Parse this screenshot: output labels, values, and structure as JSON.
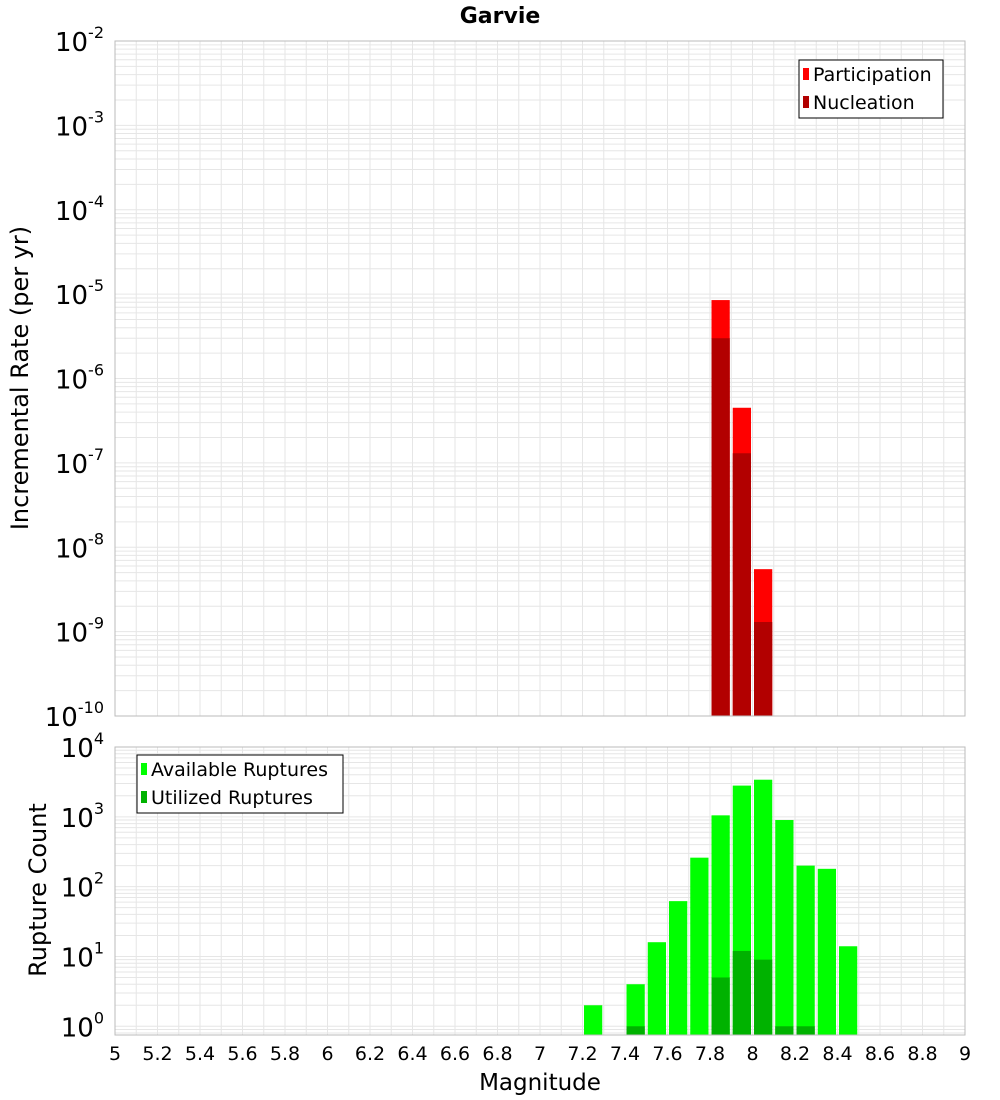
{
  "title": "Garvie",
  "xlabel": "Magnitude",
  "xlim": [
    5,
    9
  ],
  "xticks": [
    "5",
    "5.2",
    "5.4",
    "5.6",
    "5.8",
    "6",
    "6.2",
    "6.4",
    "6.6",
    "6.8",
    "7",
    "7.2",
    "7.4",
    "7.6",
    "7.8",
    "8",
    "8.2",
    "8.4",
    "8.6",
    "8.8",
    "9"
  ],
  "colors": {
    "participation": "#ff0000",
    "nucleation": "#b20000",
    "available": "#00ff00",
    "utilized": "#00b200",
    "grid": "#e6e6e6",
    "frame": "#bbbbbb"
  },
  "chart_data": [
    {
      "type": "bar",
      "panel": "top",
      "ylabel": "Incremental Rate (per yr)",
      "yscale": "log",
      "ylim": [
        1e-10,
        0.01
      ],
      "ytick_exponents": [
        "-10",
        "-9",
        "-8",
        "-7",
        "-6",
        "-5",
        "-4",
        "-3",
        "-2"
      ],
      "ytick_base": "10",
      "bin_width": 0.1,
      "legend_position": "top-right",
      "series": [
        {
          "name": "Participation",
          "color": "#ff0000",
          "x": [
            7.85,
            7.95,
            8.05
          ],
          "values": [
            8.5e-06,
            4.5e-07,
            5.5e-09
          ]
        },
        {
          "name": "Nucleation",
          "color": "#b20000",
          "x": [
            7.85,
            7.95,
            8.05
          ],
          "values": [
            3e-06,
            1.3e-07,
            1.3e-09
          ]
        }
      ]
    },
    {
      "type": "bar",
      "panel": "bottom",
      "ylabel": "Rupture Count",
      "yscale": "log",
      "ylim": [
        0.75,
        10000
      ],
      "ytick_exponents": [
        "0",
        "1",
        "2",
        "3",
        "4"
      ],
      "ytick_base": "10",
      "bin_width": 0.1,
      "legend_position": "top-left",
      "series": [
        {
          "name": "Available Ruptures",
          "color": "#00ff00",
          "x": [
            7.25,
            7.45,
            7.55,
            7.65,
            7.75,
            7.85,
            7.95,
            8.05,
            8.15,
            8.25,
            8.35,
            8.45
          ],
          "values": [
            2,
            4,
            16,
            62,
            260,
            1050,
            2800,
            3400,
            900,
            200,
            180,
            14
          ]
        },
        {
          "name": "Utilized Ruptures",
          "color": "#00b200",
          "x": [
            7.45,
            7.85,
            7.95,
            8.05,
            8.15,
            8.25
          ],
          "values": [
            1,
            5,
            12,
            9,
            1,
            1
          ]
        }
      ]
    }
  ]
}
